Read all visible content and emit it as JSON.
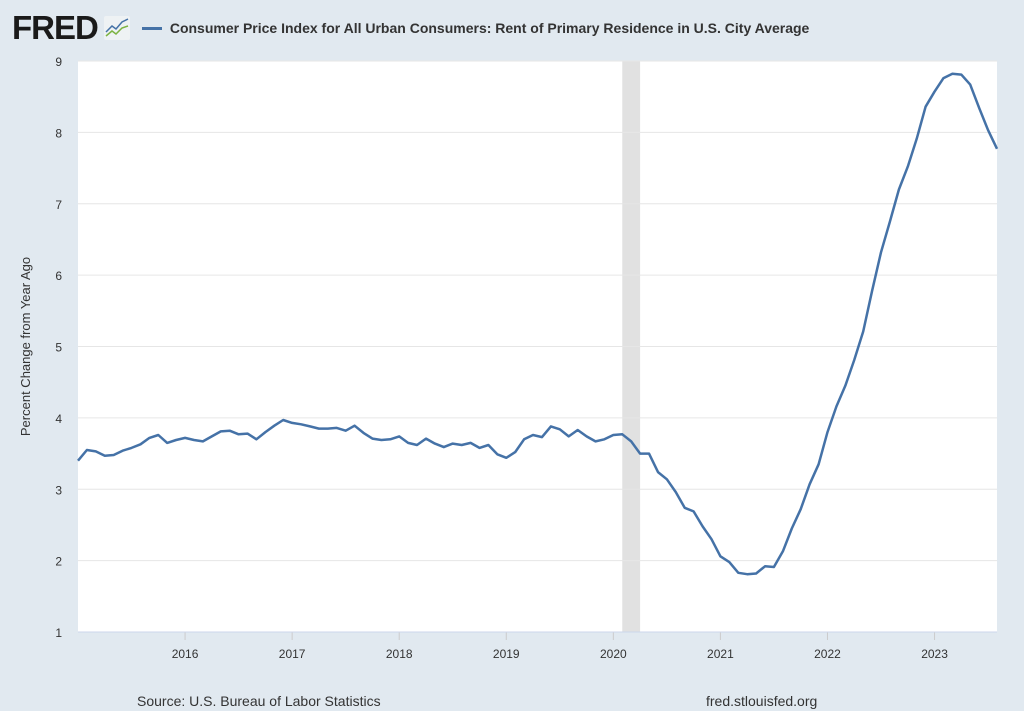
{
  "header": {
    "logo": "FRED",
    "title": "Consumer Price Index for All Urban Consumers: Rent of Primary Residence in U.S. City Average"
  },
  "footer": {
    "source": "Source: U.S. Bureau of Labor Statistics",
    "url": "fred.stlouisfed.org"
  },
  "chart_data": {
    "type": "line",
    "title": "Consumer Price Index for All Urban Consumers: Rent of Primary Residence in U.S. City Average",
    "ylabel": "Percent Change from Year Ago",
    "xlabel": "",
    "ylim": [
      1,
      9
    ],
    "xlim": [
      "2015-01",
      "2023-08"
    ],
    "grid": true,
    "line_color": "#4572a7",
    "recession_color": "#e1e1e1",
    "recessions": [
      [
        "2020-02",
        "2020-04"
      ]
    ],
    "yticks": [
      "1",
      "2",
      "3",
      "4",
      "5",
      "6",
      "7",
      "8",
      "9"
    ],
    "xticks": [
      "2016",
      "2017",
      "2018",
      "2019",
      "2020",
      "2021",
      "2022",
      "2023"
    ],
    "start": "2015-01",
    "frequency": "monthly",
    "values": [
      3.4,
      3.55,
      3.53,
      3.47,
      3.48,
      3.54,
      3.58,
      3.63,
      3.72,
      3.76,
      3.65,
      3.69,
      3.72,
      3.69,
      3.67,
      3.74,
      3.81,
      3.82,
      3.77,
      3.78,
      3.7,
      3.8,
      3.89,
      3.97,
      3.93,
      3.91,
      3.88,
      3.85,
      3.85,
      3.86,
      3.82,
      3.89,
      3.79,
      3.71,
      3.69,
      3.7,
      3.74,
      3.65,
      3.62,
      3.71,
      3.64,
      3.59,
      3.64,
      3.62,
      3.65,
      3.58,
      3.62,
      3.49,
      3.44,
      3.52,
      3.7,
      3.76,
      3.73,
      3.88,
      3.84,
      3.74,
      3.83,
      3.74,
      3.67,
      3.7,
      3.76,
      3.77,
      3.67,
      3.5,
      3.5,
      3.24,
      3.14,
      2.96,
      2.74,
      2.69,
      2.48,
      2.3,
      2.06,
      1.98,
      1.83,
      1.81,
      1.82,
      1.92,
      1.91,
      2.13,
      2.45,
      2.72,
      3.07,
      3.35,
      3.8,
      4.16,
      4.45,
      4.81,
      5.21,
      5.78,
      6.32,
      6.75,
      7.2,
      7.52,
      7.91,
      8.36,
      8.57,
      8.76,
      8.82,
      8.81,
      8.67,
      8.34,
      8.03,
      7.77
    ]
  }
}
